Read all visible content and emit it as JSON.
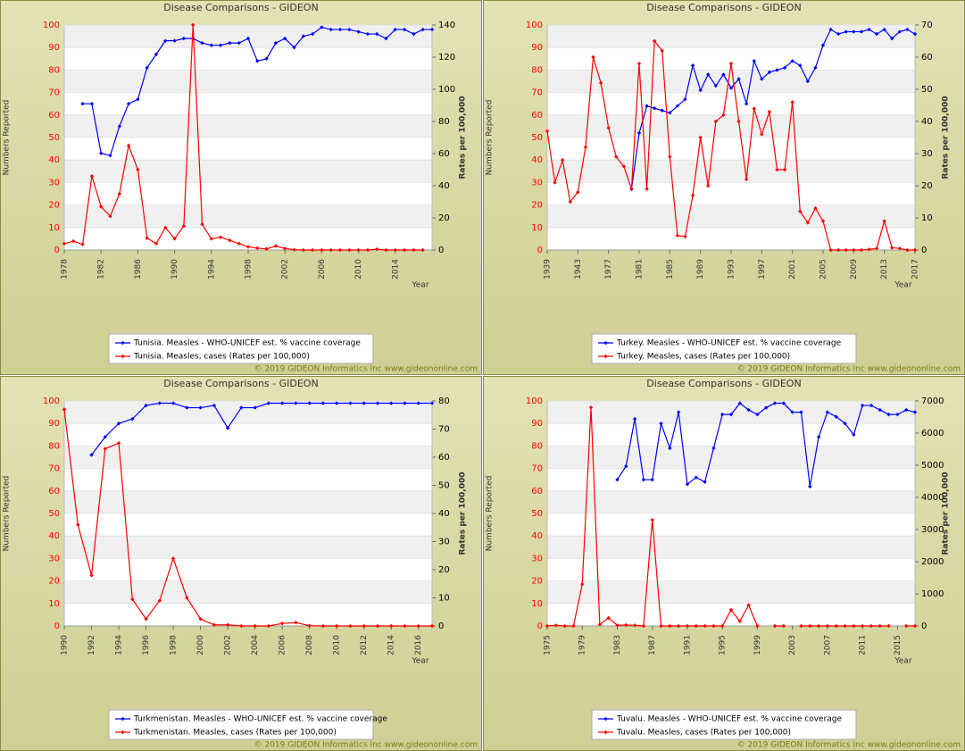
{
  "chart_data": [
    {
      "type": "line",
      "title": "Disease Comparisons - GIDEON",
      "y_label": "Numbers Reported",
      "y2_label": "Rates per 100,000",
      "x_label": "Year",
      "categories": [
        "1978",
        null,
        null,
        null,
        "1982",
        null,
        null,
        null,
        "1986",
        null,
        null,
        null,
        "1990",
        null,
        null,
        null,
        "1994",
        null,
        null,
        null,
        "1998",
        null,
        null,
        null,
        "2002",
        null,
        null,
        null,
        "2006",
        null,
        null,
        null,
        "2010",
        null,
        null,
        null,
        "2014",
        null,
        null,
        null,
        null
      ],
      "series": [
        {
          "name": "Tunisia. Measles - WHO-UNICEF est. % vaccine coverage",
          "color": "#0000ff",
          "values": [
            null,
            null,
            65,
            65,
            43,
            42,
            55,
            65,
            67,
            81,
            87,
            93,
            93,
            94,
            94,
            92,
            91,
            91,
            92,
            92,
            94,
            84,
            85,
            92,
            94,
            90,
            95,
            96,
            99,
            98,
            98,
            98,
            97,
            96,
            96,
            94,
            98,
            98,
            96,
            98,
            98
          ]
        },
        {
          "name": "Tunisia. Measles, cases (Rates per 100,000)",
          "color": "#ff0000",
          "axis": "y2",
          "values": [
            4,
            5.5,
            3.5,
            46,
            27,
            21,
            35,
            65,
            50,
            7.5,
            4,
            14,
            7,
            15,
            140,
            16,
            7,
            8,
            6,
            4,
            2,
            1.2,
            0.7,
            2.5,
            1,
            0.2,
            0,
            0,
            0,
            0,
            0,
            0,
            0,
            0,
            0.5,
            0,
            0,
            0,
            0,
            0,
            null
          ]
        }
      ],
      "ylim": [
        0,
        100
      ],
      "yticks": [
        0,
        10,
        20,
        30,
        40,
        50,
        60,
        70,
        80,
        90,
        100
      ],
      "y2lim": [
        0,
        140
      ],
      "y2ticks": [
        0,
        20,
        40,
        60,
        80,
        100,
        120,
        140
      ],
      "grid": true,
      "copyright": "© 2019 GIDEON Informatics Inc www.gideononline.com"
    },
    {
      "type": "line",
      "title": "Disease Comparisons - GIDEON",
      "y_label": "Numbers Reported",
      "y2_label": "Rates per 100,000",
      "x_label": "Year",
      "categories": [
        "1939",
        null,
        null,
        null,
        "1943",
        null,
        null,
        null,
        "1977",
        null,
        null,
        null,
        "1981",
        null,
        null,
        null,
        "1985",
        null,
        null,
        null,
        "1989",
        null,
        null,
        null,
        "1993",
        null,
        null,
        null,
        "1997",
        null,
        null,
        null,
        "2001",
        null,
        null,
        null,
        "2005",
        null,
        null,
        null,
        "2009",
        null,
        null,
        null,
        "2013",
        null,
        null,
        null,
        "2017"
      ],
      "series": [
        {
          "name": "Turkey. Measles - WHO-UNICEF est. % vaccine coverage",
          "color": "#0000ff",
          "values": [
            null,
            null,
            null,
            null,
            null,
            null,
            null,
            null,
            null,
            null,
            null,
            27,
            52,
            64,
            63,
            62,
            61,
            64,
            67,
            82,
            71,
            78,
            73,
            78,
            72,
            76,
            65,
            84,
            76,
            79,
            80,
            81,
            84,
            82,
            75,
            81,
            91,
            98,
            96,
            97,
            97,
            97,
            98,
            96,
            98,
            94,
            97,
            98,
            96
          ]
        },
        {
          "name": "Turkey. Measles, cases (Rates per 100,000)",
          "color": "#ff0000",
          "axis": "y2",
          "values": [
            37,
            21,
            28,
            15,
            18,
            32,
            60,
            52,
            38,
            29,
            26,
            19,
            58,
            19,
            65,
            62,
            29,
            4.5,
            4.2,
            17,
            35,
            20,
            40,
            42,
            58,
            40,
            22,
            44,
            36,
            43,
            25,
            25,
            46,
            12,
            8.5,
            13,
            9,
            0,
            0,
            0,
            0,
            0,
            0.2,
            0.5,
            9,
            0.7,
            0.5,
            0,
            0
          ]
        }
      ],
      "ylim": [
        0,
        100
      ],
      "yticks": [
        0,
        10,
        20,
        30,
        40,
        50,
        60,
        70,
        80,
        90,
        100
      ],
      "y2lim": [
        0,
        70
      ],
      "y2ticks": [
        0,
        10,
        20,
        30,
        40,
        50,
        60,
        70
      ],
      "grid": true,
      "copyright": "© 2019 GIDEON Informatics Inc www.gideononline.com"
    },
    {
      "type": "line",
      "title": "Disease Comparisons - GIDEON",
      "y_label": "Numbers Reported",
      "y2_label": "Rates per 100,000",
      "x_label": "Year",
      "categories": [
        "1990",
        null,
        "1992",
        null,
        "1994",
        null,
        "1996",
        null,
        "1998",
        null,
        "2000",
        null,
        "2002",
        null,
        "2004",
        null,
        "2006",
        null,
        "2008",
        null,
        "2010",
        null,
        "2012",
        null,
        "2014",
        null,
        "2016",
        null
      ],
      "series": [
        {
          "name": "Turkmenistan. Measles - WHO-UNICEF est. % vaccine coverage",
          "color": "#0000ff",
          "values": [
            null,
            null,
            76,
            84,
            90,
            92,
            98,
            99,
            99,
            97,
            97,
            98,
            88,
            97,
            97,
            99,
            99,
            99,
            99,
            99,
            99,
            99,
            99,
            99,
            99,
            99,
            99,
            99
          ]
        },
        {
          "name": "Turkmenistan. Measles, cases (Rates per 100,000)",
          "color": "#ff0000",
          "axis": "y2",
          "values": [
            77,
            36,
            18,
            63,
            65,
            9.5,
            2.5,
            9,
            24,
            10,
            2.5,
            0.4,
            0.4,
            0,
            0,
            0,
            0.9,
            1.2,
            0.1,
            0,
            0,
            0,
            0,
            0,
            0,
            0,
            0,
            0
          ]
        }
      ],
      "ylim": [
        0,
        100
      ],
      "yticks": [
        0,
        10,
        20,
        30,
        40,
        50,
        60,
        70,
        80,
        90,
        100
      ],
      "y2lim": [
        0,
        80
      ],
      "y2ticks": [
        0,
        10,
        20,
        30,
        40,
        50,
        60,
        70,
        80
      ],
      "grid": true,
      "copyright": "© 2019 GIDEON Informatics Inc www.gideononline.com"
    },
    {
      "type": "line",
      "title": "Disease Comparisons - GIDEON",
      "y_label": "Numbers Reported",
      "y2_label": "Rates per 100,000",
      "x_label": "Year",
      "categories": [
        "1975",
        null,
        null,
        null,
        "1979",
        null,
        null,
        null,
        "1983",
        null,
        null,
        null,
        "1987",
        null,
        null,
        null,
        "1991",
        null,
        null,
        null,
        "1995",
        null,
        null,
        null,
        "1999",
        null,
        null,
        null,
        "2003",
        null,
        null,
        null,
        "2007",
        null,
        null,
        null,
        "2011",
        null,
        null,
        null,
        "2015",
        null,
        null
      ],
      "series": [
        {
          "name": "Tuvalu. Measles - WHO-UNICEF est. % vaccine coverage",
          "color": "#0000ff",
          "values": [
            null,
            null,
            null,
            null,
            null,
            null,
            null,
            null,
            65,
            71,
            92,
            65,
            65,
            90,
            79,
            95,
            63,
            66,
            64,
            79,
            94,
            94,
            99,
            96,
            94,
            97,
            99,
            99,
            95,
            95,
            62,
            84,
            95,
            93,
            90,
            85,
            98,
            98,
            96,
            94,
            94,
            96,
            95
          ]
        },
        {
          "name": "Tuvalu. Measles, cases (Rates per 100,000)",
          "color": "#ff0000",
          "axis": "y2",
          "values": [
            0,
            20,
            0,
            0,
            1300,
            6800,
            50,
            250,
            20,
            30,
            20,
            0,
            3300,
            0,
            0,
            0,
            0,
            0,
            0,
            0,
            0,
            500,
            150,
            650,
            0,
            null,
            0,
            0,
            null,
            0,
            0,
            0,
            0,
            0,
            0,
            0,
            0,
            0,
            0,
            0,
            null,
            0,
            0
          ]
        }
      ],
      "ylim": [
        0,
        100
      ],
      "yticks": [
        0,
        10,
        20,
        30,
        40,
        50,
        60,
        70,
        80,
        90,
        100
      ],
      "y2lim": [
        0,
        7000
      ],
      "y2ticks": [
        0,
        1000,
        2000,
        3000,
        4000,
        5000,
        6000,
        7000
      ],
      "grid": true,
      "copyright": "© 2019 GIDEON Informatics Inc www.gideononline.com"
    }
  ]
}
